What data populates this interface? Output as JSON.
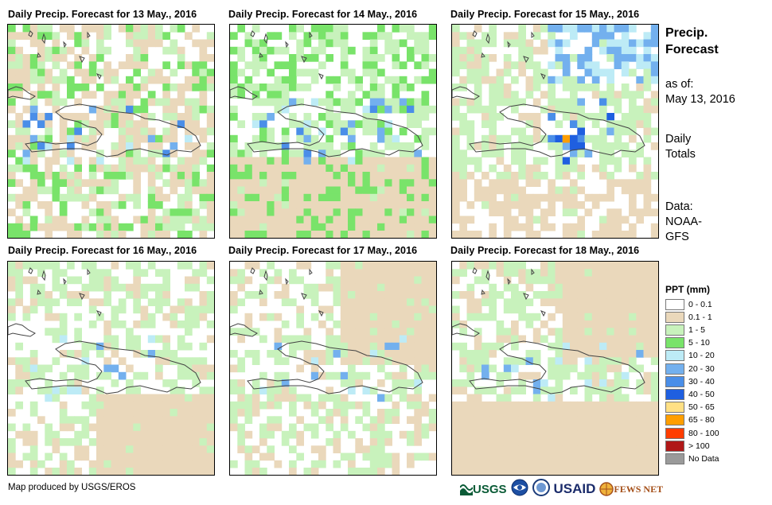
{
  "panels": [
    {
      "title": "Daily Precip. Forecast for 13 May., 2016"
    },
    {
      "title": "Daily Precip. Forecast for 14 May., 2016"
    },
    {
      "title": "Daily Precip. Forecast for 15 May., 2016"
    },
    {
      "title": "Daily Precip. Forecast for 16 May., 2016"
    },
    {
      "title": "Daily Precip. Forecast for 17 May., 2016"
    },
    {
      "title": "Daily Precip. Forecast for 18 May., 2016"
    }
  ],
  "side": {
    "title_line1": "Precip.",
    "title_line2": "Forecast",
    "asof_line1": "as of:",
    "asof_line2": "May 13, 2016",
    "totals_line1": "Daily",
    "totals_line2": "Totals",
    "source_line1": "Data:",
    "source_line2": "NOAA-",
    "source_line3": "GFS"
  },
  "legend": {
    "title": "PPT (mm)",
    "classes": [
      {
        "label": "0 - 0.1",
        "color": "#ffffff"
      },
      {
        "label": "0.1 - 1",
        "color": "#ead8bb"
      },
      {
        "label": "1 - 5",
        "color": "#c8f2bc"
      },
      {
        "label": "5 - 10",
        "color": "#79e36a"
      },
      {
        "label": "10 - 20",
        "color": "#bdebf6"
      },
      {
        "label": "20 - 30",
        "color": "#73b0ee"
      },
      {
        "label": "30 - 40",
        "color": "#4a8ee8"
      },
      {
        "label": "40 - 50",
        "color": "#1f5fe0"
      },
      {
        "label": "50 - 65",
        "color": "#ffe084"
      },
      {
        "label": "65 - 80",
        "color": "#ff9e00"
      },
      {
        "label": "80 - 100",
        "color": "#ff3d00"
      },
      {
        "label": "> 100",
        "color": "#b01818"
      },
      {
        "label": "No Data",
        "color": "#9a9a9a"
      }
    ]
  },
  "footer": {
    "credit": "Map produced by USGS/EROS",
    "logo_usgs": "USGS",
    "logo_noaa": "NOAA",
    "logo_usaid": "USAID",
    "logo_fewsnet": "FEWS NET"
  }
}
